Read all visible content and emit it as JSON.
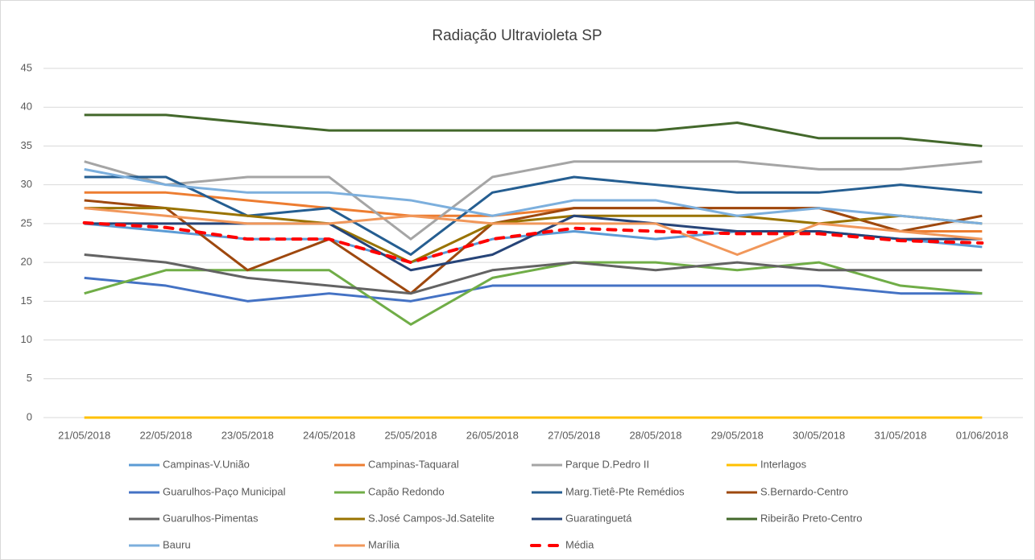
{
  "chart_data": {
    "type": "line",
    "title": "Radiação Ultravioleta SP",
    "categories": [
      "21/05/2018",
      "22/05/2018",
      "23/05/2018",
      "24/05/2018",
      "25/05/2018",
      "26/05/2018",
      "27/05/2018",
      "28/05/2018",
      "29/05/2018",
      "30/05/2018",
      "31/05/2018",
      "01/06/2018"
    ],
    "ylim": [
      0,
      45
    ],
    "yticks": [
      0,
      5,
      10,
      15,
      20,
      25,
      30,
      35,
      40,
      45
    ],
    "grid": true,
    "series": [
      {
        "name": "Campinas-V.União",
        "color": "#5B9BD5",
        "values": [
          25,
          24,
          23,
          23,
          20,
          23,
          24,
          23,
          24,
          24,
          23,
          22
        ]
      },
      {
        "name": "Campinas-Taquaral",
        "color": "#ED7D31",
        "values": [
          29,
          29,
          28,
          27,
          26,
          26,
          27,
          27,
          27,
          27,
          24,
          24
        ]
      },
      {
        "name": "Parque D.Pedro II",
        "color": "#A5A5A5",
        "values": [
          33,
          30,
          31,
          31,
          23,
          31,
          33,
          33,
          33,
          32,
          32,
          33
        ]
      },
      {
        "name": "Interlagos",
        "color": "#FFC000",
        "values": [
          0,
          0,
          0,
          0,
          0,
          0,
          0,
          0,
          0,
          0,
          0,
          0
        ]
      },
      {
        "name": "Guarulhos-Paço Municipal",
        "color": "#4472C4",
        "values": [
          18,
          17,
          15,
          16,
          15,
          17,
          17,
          17,
          17,
          17,
          16,
          16
        ]
      },
      {
        "name": "Capão Redondo",
        "color": "#70AD47",
        "values": [
          16,
          19,
          19,
          19,
          12,
          18,
          20,
          20,
          19,
          20,
          17,
          16
        ]
      },
      {
        "name": "Marg.Tietê-Pte Remédios",
        "color": "#255E91",
        "values": [
          31,
          31,
          26,
          27,
          21,
          29,
          31,
          30,
          29,
          29,
          30,
          29
        ]
      },
      {
        "name": "S.Bernardo-Centro",
        "color": "#9E480E",
        "values": [
          28,
          27,
          19,
          23,
          16,
          25,
          27,
          27,
          27,
          27,
          24,
          26
        ]
      },
      {
        "name": "Guarulhos-Pimentas",
        "color": "#636363",
        "values": [
          21,
          20,
          18,
          17,
          16,
          19,
          20,
          19,
          20,
          19,
          19,
          19
        ]
      },
      {
        "name": "S.José Campos-Jd.Satelite",
        "color": "#997300",
        "values": [
          27,
          27,
          26,
          25,
          20,
          25,
          26,
          26,
          26,
          25,
          26,
          25
        ]
      },
      {
        "name": "Guaratinguetá",
        "color": "#264478",
        "values": [
          25,
          25,
          25,
          25,
          19,
          21,
          26,
          25,
          24,
          24,
          23,
          23
        ]
      },
      {
        "name": "Ribeirão Preto-Centro",
        "color": "#43682B",
        "values": [
          39,
          39,
          38,
          37,
          37,
          37,
          37,
          37,
          38,
          36,
          36,
          35
        ]
      },
      {
        "name": "Bauru",
        "color": "#7CAFDD",
        "values": [
          32,
          30,
          29,
          29,
          28,
          26,
          28,
          28,
          26,
          27,
          26,
          25
        ]
      },
      {
        "name": "Marília",
        "color": "#F1975A",
        "values": [
          27,
          26,
          25,
          25,
          26,
          25,
          25,
          25,
          21,
          25,
          24,
          23
        ]
      },
      {
        "name": "Média",
        "color": "#FF0000",
        "dashed": true,
        "values": [
          25.1,
          24.5,
          23,
          23,
          20,
          23,
          24.4,
          24,
          23.7,
          23.7,
          22.8,
          22.5
        ]
      }
    ]
  }
}
